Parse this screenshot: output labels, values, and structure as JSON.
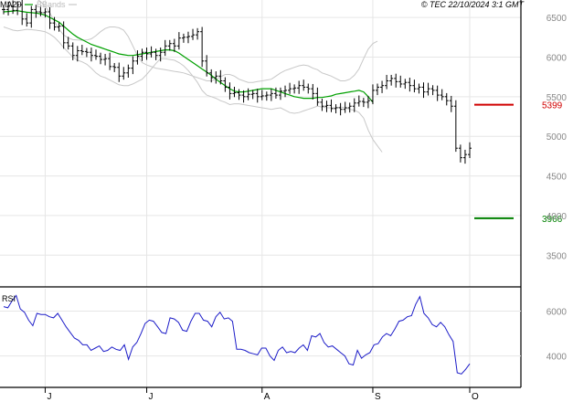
{
  "header": {
    "legend_ma": "MA20",
    "legend_bb": "BBands",
    "copyright": "© TEC 22/10/2024 3:1 GMT"
  },
  "colors": {
    "price": "#000000",
    "ma": "#00a000",
    "bands": "#c8c8c8",
    "grid": "#e6e6e6",
    "resistance": "#d00000",
    "support": "#008000",
    "rsi": "#1c1cc8",
    "axis_text": "#888888",
    "border": "#000000"
  },
  "chart_data": [
    {
      "type": "ohlc",
      "ylim": [
        3100,
        6720
      ],
      "y_ticks": [
        6500,
        6000,
        5500,
        5000,
        4500,
        4000,
        3500
      ],
      "y_tick_labels": [
        "6500",
        "6000",
        "5500",
        "5000",
        "4500",
        "4000",
        "3500"
      ],
      "x_ticks": [
        {
          "index": 9,
          "label": "J"
        },
        {
          "index": 31,
          "label": "J"
        },
        {
          "index": 56,
          "label": "A"
        },
        {
          "index": 80,
          "label": "S"
        },
        {
          "index": 101,
          "label": "O"
        }
      ],
      "levels": [
        {
          "name": "resistance",
          "value": 5399,
          "label": "5399"
        },
        {
          "name": "support",
          "value": 3966,
          "label": "3966"
        }
      ],
      "close": [
        6600,
        6640,
        6590,
        6660,
        6480,
        6430,
        6600,
        6570,
        6560,
        6570,
        6430,
        6380,
        6390,
        6180,
        6140,
        6020,
        6080,
        6070,
        6060,
        6020,
        6010,
        5970,
        5980,
        5880,
        5870,
        5760,
        5800,
        5860,
        5950,
        6010,
        6060,
        6040,
        6060,
        6020,
        6060,
        6140,
        6170,
        6140,
        6240,
        6250,
        6260,
        6280,
        6320,
        5950,
        5800,
        5740,
        5760,
        5700,
        5620,
        5540,
        5550,
        5520,
        5500,
        5530,
        5540,
        5500,
        5510,
        5520,
        5540,
        5520,
        5570,
        5580,
        5600,
        5610,
        5640,
        5620,
        5600,
        5540,
        5430,
        5380,
        5390,
        5350,
        5360,
        5340,
        5360,
        5380,
        5420,
        5440,
        5430,
        5450,
        5580,
        5620,
        5640,
        5700,
        5730,
        5690,
        5660,
        5680,
        5640,
        5600,
        5620,
        5560,
        5600,
        5580,
        5520,
        5500,
        5450,
        5380,
        4850,
        4730,
        4770,
        4850
      ],
      "ma20": [
        6570,
        6575,
        6580,
        6585,
        6575,
        6565,
        6560,
        6555,
        6545,
        6530,
        6500,
        6470,
        6440,
        6390,
        6340,
        6290,
        6250,
        6220,
        6190,
        6160,
        6140,
        6120,
        6100,
        6080,
        6060,
        6040,
        6030,
        6020,
        6020,
        6030,
        6040,
        6050,
        6060,
        6070,
        6080,
        6090,
        6090,
        6080,
        6050,
        6010,
        5970,
        5930,
        5890,
        5850,
        5810,
        5770,
        5720,
        5680,
        5640,
        5600,
        5570,
        5560,
        5560,
        5570,
        5580,
        5590,
        5600,
        5600,
        5600,
        5580,
        5560,
        5540,
        5520,
        5500,
        5490,
        5480,
        5480,
        5480,
        5490,
        5490,
        5500,
        5510,
        5530,
        5540,
        5550,
        5560,
        5570,
        5580,
        5560,
        5500,
        5430
      ],
      "upper_band": [
        6780,
        6790,
        6800,
        6810,
        6800,
        6790,
        6770,
        6740,
        6700,
        6640,
        6560,
        6450,
        6350,
        6280,
        6240,
        6220,
        6215,
        6213,
        6215,
        6230,
        6270,
        6320,
        6360,
        6380,
        6380,
        6370,
        6340,
        6260,
        6140,
        6020,
        5930,
        5900,
        5880,
        5860,
        5850,
        5840,
        5830,
        5820,
        5810,
        5800,
        5780,
        5760,
        5740,
        5720,
        5700,
        5700,
        5720,
        5750,
        5780,
        5780,
        5760,
        5720,
        5700,
        5680,
        5680,
        5690,
        5700,
        5710,
        5720,
        5760,
        5800,
        5830,
        5850,
        5870,
        5890,
        5900,
        5890,
        5860,
        5840,
        5800,
        5780,
        5760,
        5730,
        5700,
        5700,
        5720,
        5770,
        5850,
        5980,
        6100,
        6170,
        6200
      ],
      "lower_band": [
        6380,
        6360,
        6340,
        6330,
        6340,
        6350,
        6345,
        6340,
        6330,
        6320,
        6290,
        6250,
        6190,
        6120,
        6060,
        6000,
        5960,
        5940,
        5910,
        5860,
        5800,
        5760,
        5740,
        5710,
        5680,
        5650,
        5640,
        5640,
        5660,
        5690,
        5720,
        5780,
        5850,
        5920,
        5980,
        5980,
        5970,
        5960,
        5930,
        5890,
        5830,
        5760,
        5680,
        5580,
        5520,
        5500,
        5480,
        5450,
        5430,
        5400,
        5410,
        5410,
        5400,
        5390,
        5380,
        5370,
        5360,
        5350,
        5340,
        5350,
        5360,
        5330,
        5300,
        5290,
        5300,
        5320,
        5340,
        5360,
        5380,
        5370,
        5360,
        5360,
        5360,
        5370,
        5360,
        5340,
        5330,
        5300,
        5230,
        5080,
        4960,
        4880,
        4800
      ],
      "band_start_index": 0
    },
    {
      "type": "line",
      "title": "RSI",
      "ylim": [
        2600,
        7000
      ],
      "y_ticks": [
        6000,
        4000
      ],
      "y_tick_labels": [
        "6000",
        "4000"
      ],
      "values": [
        6200,
        6150,
        6450,
        6700,
        6100,
        5950,
        5600,
        5350,
        5900,
        5850,
        5850,
        5750,
        5700,
        5900,
        5600,
        5300,
        5050,
        4800,
        4700,
        4500,
        4500,
        4250,
        4350,
        4450,
        4200,
        4250,
        4400,
        4300,
        4250,
        4500,
        3850,
        4400,
        4600,
        5000,
        5450,
        5600,
        5550,
        5300,
        5050,
        5000,
        5700,
        5650,
        5500,
        5150,
        5100,
        5550,
        5900,
        5900,
        5600,
        5550,
        5300,
        5750,
        5950,
        5650,
        5700,
        5550,
        4300,
        4300,
        4250,
        4150,
        4100,
        4050,
        4350,
        4350,
        4000,
        3800,
        4250,
        4400,
        4150,
        4200,
        4150,
        4350,
        4500,
        4250,
        4900,
        4850,
        5000,
        4600,
        4400,
        4450,
        4300,
        4150,
        4000,
        3650,
        3600,
        4250,
        3900,
        4050,
        4150,
        4500,
        4550,
        4850,
        5000,
        4900,
        5200,
        5550,
        5600,
        5750,
        5800,
        6300,
        6650,
        5900,
        5700,
        5400,
        5300,
        5500,
        5300,
        4950,
        4650,
        3250,
        3200,
        3400,
        3650
      ]
    }
  ]
}
